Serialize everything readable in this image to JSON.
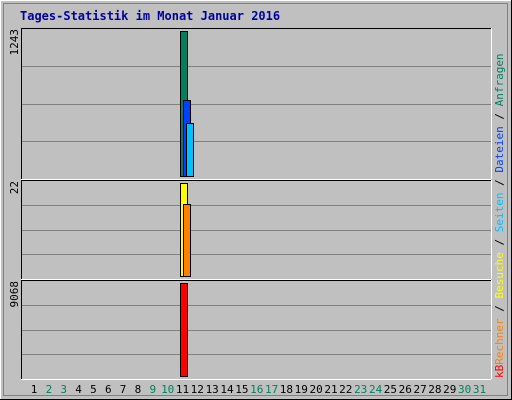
{
  "chart_data": {
    "type": "bar",
    "title": "Tages-Statistik im Monat Januar 2016",
    "x": [
      "1",
      "2",
      "3",
      "4",
      "5",
      "6",
      "7",
      "8",
      "9",
      "10",
      "11",
      "12",
      "13",
      "14",
      "15",
      "16",
      "17",
      "18",
      "19",
      "20",
      "21",
      "22",
      "23",
      "24",
      "25",
      "26",
      "27",
      "28",
      "29",
      "30",
      "31"
    ],
    "weekend_days": [
      "2",
      "3",
      "9",
      "10",
      "16",
      "17",
      "23",
      "24",
      "30",
      "31"
    ],
    "colors": {
      "background": "#c0c0c0",
      "frame": "#808080",
      "gridline": "#808080",
      "title": "#0000a0",
      "weekday_label": "#000000",
      "weekend_label": "#00805c"
    },
    "panels": [
      {
        "ymax_label": "1243",
        "ylim": [
          0,
          1243
        ],
        "series": [
          {
            "name": "Anfragen",
            "color": "#00805c",
            "values": {
              "11": 1243
            }
          },
          {
            "name": "Dateien",
            "color": "#0040ff",
            "values": {
              "11": 650
            }
          },
          {
            "name": "Seiten",
            "color": "#00c0ff",
            "values": {
              "11": 455
            }
          }
        ]
      },
      {
        "ymax_label": "22",
        "ylim": [
          0,
          22
        ],
        "series": [
          {
            "name": "Besuche",
            "color": "#ffff00",
            "values": {
              "11": 22
            }
          },
          {
            "name": "Rechner",
            "color": "#ff8000",
            "values": {
              "11": 17
            }
          }
        ]
      },
      {
        "ymax_label": "9068",
        "ylim": [
          0,
          9068
        ],
        "series": [
          {
            "name": "kB",
            "color": "#ff0000",
            "values": {
              "11": 9068
            }
          }
        ]
      }
    ],
    "legend": {
      "placement": "right",
      "items": [
        {
          "text": "kB",
          "color": "#ff0000"
        },
        {
          "text": "Rechner",
          "color": "#ff8000"
        },
        {
          "text": " / ",
          "color": "#000000"
        },
        {
          "text": "Besuche",
          "color": "#ffff00"
        },
        {
          "text": " / ",
          "color": "#000000"
        },
        {
          "text": "Seiten",
          "color": "#00c0ff"
        },
        {
          "text": " / ",
          "color": "#000000"
        },
        {
          "text": "Dateien",
          "color": "#0040ff"
        },
        {
          "text": " / ",
          "color": "#000000"
        },
        {
          "text": "Anfragen",
          "color": "#00805c"
        }
      ]
    }
  }
}
